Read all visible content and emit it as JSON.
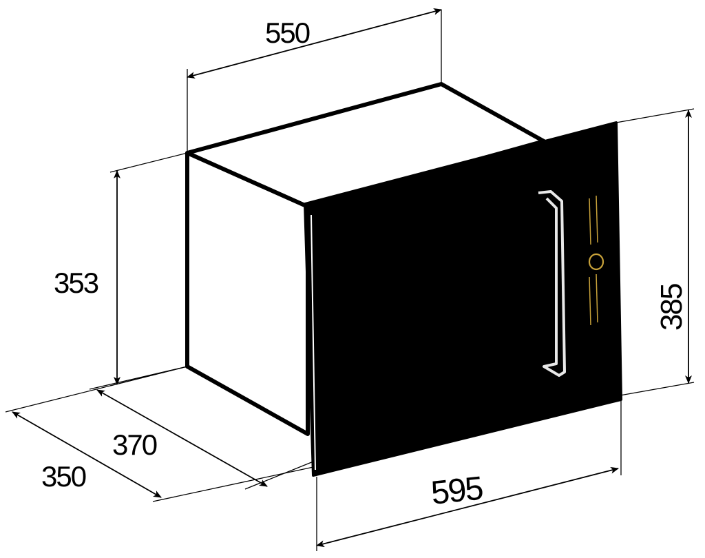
{
  "dimensions": {
    "top_width": "550",
    "side_height": "353",
    "front_height": "385",
    "inner_depth": "370",
    "outer_depth": "350",
    "front_width": "595"
  },
  "colors": {
    "line": "#000000",
    "door": "#000000",
    "background": "#ffffff",
    "handle": "#e8e8e8",
    "control_accent": "#c8a23a"
  }
}
